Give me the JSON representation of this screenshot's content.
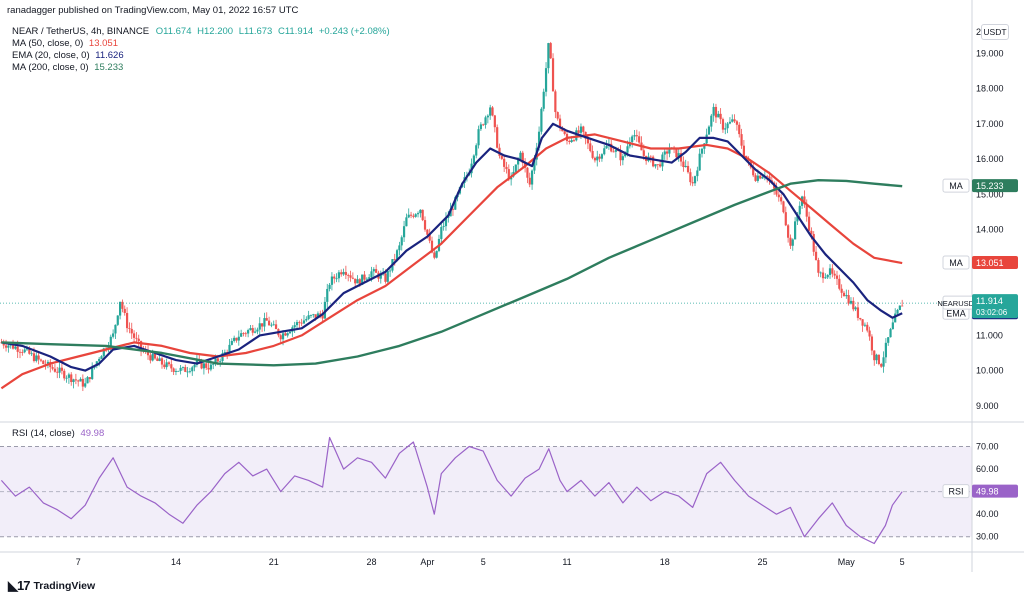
{
  "header": {
    "published": "ranadagger published on TradingView.com, May 01, 2022 16:57 UTC",
    "symbol": "NEAR / TetherUS, 4h, BINANCE",
    "ohlc_o": "O11.674",
    "ohlc_h": "H12.200",
    "ohlc_l": "L11.673",
    "ohlc_c": "C11.914",
    "change": "+0.243 (+2.08%)",
    "ma50_label": "MA (50, close, 0)",
    "ma50_value": "13.051",
    "ema20_label": "EMA (20, close, 0)",
    "ema20_value": "11.626",
    "ma200_label": "MA (200, close, 0)",
    "ma200_value": "15.233",
    "rsi_label": "RSI (14, close)",
    "rsi_value": "49.98"
  },
  "currency_button": "USDT",
  "logo_text": "TradingView",
  "colors": {
    "up": "#26a69a",
    "down": "#ef5350",
    "ma50": "#e8453c",
    "ema20": "#1a237e",
    "ma200": "#2e7d5e",
    "rsi": "#9a63c8",
    "rsi_band": "#ede7f6",
    "price_tag": "#26a69a"
  },
  "chart_data": {
    "type": "line",
    "price_axis": {
      "ticks": [
        "2",
        "19.000",
        "18.000",
        "17.000",
        "16.000",
        "15.000",
        "14.000",
        "13.000",
        "12.000",
        "11.000",
        "10.000",
        "9.000"
      ],
      "ylim": [
        8.6,
        20.0
      ]
    },
    "rsi_axis": {
      "ticks": [
        "70.00",
        "60.00",
        "40.00",
        "30.00"
      ],
      "ylim": [
        25,
        80
      ],
      "band": [
        30,
        70
      ],
      "midline": 50
    },
    "x_ticks": [
      {
        "label": "7",
        "day": 7
      },
      {
        "label": "14",
        "day": 14
      },
      {
        "label": "21",
        "day": 21
      },
      {
        "label": "28",
        "day": 28
      },
      {
        "label": "Apr",
        "day": 32
      },
      {
        "label": "5",
        "day": 36
      },
      {
        "label": "11",
        "day": 42
      },
      {
        "label": "18",
        "day": 49
      },
      {
        "label": "25",
        "day": 56
      },
      {
        "label": "May",
        "day": 62
      },
      {
        "label": "5",
        "day": 66
      }
    ],
    "x_range": [
      1.4,
      71
    ],
    "price_path": [
      [
        1.5,
        10.8
      ],
      [
        3,
        10.6
      ],
      [
        4.5,
        10.2
      ],
      [
        5.5,
        10.0
      ],
      [
        6.5,
        9.8
      ],
      [
        7.5,
        9.6
      ],
      [
        8.5,
        10.4
      ],
      [
        9.5,
        11.0
      ],
      [
        10,
        12.0
      ],
      [
        10.5,
        11.3
      ],
      [
        11.5,
        10.6
      ],
      [
        12.5,
        10.3
      ],
      [
        13.5,
        10.1
      ],
      [
        14.5,
        10.0
      ],
      [
        15.5,
        10.2
      ],
      [
        16.5,
        10.1
      ],
      [
        17.5,
        10.5
      ],
      [
        18.5,
        11.0
      ],
      [
        19.5,
        11.2
      ],
      [
        20.5,
        11.4
      ],
      [
        21.5,
        11.0
      ],
      [
        22.5,
        11.3
      ],
      [
        23.5,
        11.5
      ],
      [
        24.5,
        11.6
      ],
      [
        25,
        12.5
      ],
      [
        26,
        12.9
      ],
      [
        27,
        12.5
      ],
      [
        28,
        12.8
      ],
      [
        29,
        12.6
      ],
      [
        30,
        13.5
      ],
      [
        30.5,
        14.3
      ],
      [
        31.5,
        14.6
      ],
      [
        32.5,
        13.1
      ],
      [
        33,
        14.0
      ],
      [
        34,
        14.8
      ],
      [
        35,
        15.7
      ],
      [
        35.7,
        16.8
      ],
      [
        36.5,
        17.5
      ],
      [
        37.2,
        16.0
      ],
      [
        38,
        15.4
      ],
      [
        38.7,
        16.2
      ],
      [
        39.3,
        15.2
      ],
      [
        40,
        16.8
      ],
      [
        40.7,
        19.3
      ],
      [
        41.2,
        17.2
      ],
      [
        42,
        16.5
      ],
      [
        43,
        16.8
      ],
      [
        44,
        16.0
      ],
      [
        45,
        16.4
      ],
      [
        46,
        16.0
      ],
      [
        46.7,
        16.8
      ],
      [
        47.5,
        16.1
      ],
      [
        48.5,
        15.8
      ],
      [
        49.3,
        16.3
      ],
      [
        50,
        16.1
      ],
      [
        51,
        15.3
      ],
      [
        51.8,
        16.5
      ],
      [
        52.5,
        17.4
      ],
      [
        53.2,
        16.9
      ],
      [
        54,
        17.1
      ],
      [
        54.8,
        16.0
      ],
      [
        55.5,
        15.5
      ],
      [
        56.2,
        15.6
      ],
      [
        57,
        15.0
      ],
      [
        57.5,
        14.6
      ],
      [
        58,
        13.5
      ],
      [
        58.8,
        15.0
      ],
      [
        59.5,
        13.8
      ],
      [
        60,
        12.7
      ],
      [
        60.8,
        12.8
      ],
      [
        61.5,
        12.4
      ],
      [
        62.2,
        12.0
      ],
      [
        62.8,
        11.6
      ],
      [
        63.5,
        11.2
      ],
      [
        64,
        10.4
      ],
      [
        64.5,
        10.2
      ],
      [
        65,
        10.9
      ],
      [
        65.5,
        11.5
      ],
      [
        66,
        11.91
      ]
    ],
    "series": [
      {
        "name": "MA (50, close, 0)",
        "values": [
          [
            1.5,
            9.5
          ],
          [
            3,
            9.9
          ],
          [
            5,
            10.2
          ],
          [
            7,
            10.4
          ],
          [
            9,
            10.6
          ],
          [
            11,
            10.8
          ],
          [
            13,
            10.7
          ],
          [
            15,
            10.5
          ],
          [
            17,
            10.4
          ],
          [
            19,
            10.5
          ],
          [
            21,
            10.7
          ],
          [
            23,
            11.0
          ],
          [
            25,
            11.5
          ],
          [
            27,
            12.0
          ],
          [
            29,
            12.4
          ],
          [
            31,
            13.0
          ],
          [
            33,
            13.6
          ],
          [
            35,
            14.4
          ],
          [
            37,
            15.2
          ],
          [
            39,
            15.8
          ],
          [
            40.5,
            16.3
          ],
          [
            42,
            16.6
          ],
          [
            44,
            16.7
          ],
          [
            46,
            16.5
          ],
          [
            48,
            16.3
          ],
          [
            50,
            16.3
          ],
          [
            52,
            16.4
          ],
          [
            53.5,
            16.3
          ],
          [
            55,
            16.0
          ],
          [
            56.5,
            15.6
          ],
          [
            58,
            15.1
          ],
          [
            59.5,
            14.6
          ],
          [
            61,
            14.1
          ],
          [
            62.5,
            13.6
          ],
          [
            64,
            13.2
          ],
          [
            66,
            13.05
          ]
        ]
      },
      {
        "name": "EMA (20, close, 0)",
        "values": [
          [
            1.5,
            10.8
          ],
          [
            3,
            10.7
          ],
          [
            5,
            10.4
          ],
          [
            6.5,
            10.1
          ],
          [
            7.5,
            10.0
          ],
          [
            8.5,
            10.2
          ],
          [
            9.5,
            10.6
          ],
          [
            11,
            10.7
          ],
          [
            12.5,
            10.5
          ],
          [
            14,
            10.3
          ],
          [
            15.5,
            10.2
          ],
          [
            17,
            10.4
          ],
          [
            18.5,
            10.6
          ],
          [
            20,
            11.0
          ],
          [
            21.5,
            11.1
          ],
          [
            23,
            11.2
          ],
          [
            24.5,
            11.6
          ],
          [
            26,
            12.2
          ],
          [
            27.5,
            12.5
          ],
          [
            29,
            12.8
          ],
          [
            30.5,
            13.4
          ],
          [
            32,
            13.8
          ],
          [
            33.5,
            14.4
          ],
          [
            34.5,
            15.3
          ],
          [
            35.5,
            15.9
          ],
          [
            36.5,
            16.3
          ],
          [
            37.5,
            16.1
          ],
          [
            38.5,
            16.0
          ],
          [
            39.5,
            15.8
          ],
          [
            40.2,
            16.6
          ],
          [
            41,
            17.0
          ],
          [
            42,
            16.8
          ],
          [
            43.5,
            16.6
          ],
          [
            45,
            16.4
          ],
          [
            46.5,
            16.1
          ],
          [
            48,
            16.0
          ],
          [
            49.5,
            15.9
          ],
          [
            50.5,
            16.2
          ],
          [
            51.5,
            16.6
          ],
          [
            52.5,
            16.6
          ],
          [
            53.5,
            16.5
          ],
          [
            54.5,
            16.1
          ],
          [
            55.5,
            15.7
          ],
          [
            56.5,
            15.4
          ],
          [
            57.5,
            15.0
          ],
          [
            58.5,
            14.4
          ],
          [
            59.5,
            13.8
          ],
          [
            60.5,
            13.3
          ],
          [
            61.5,
            12.9
          ],
          [
            62.5,
            12.5
          ],
          [
            63.5,
            12.0
          ],
          [
            64.5,
            11.7
          ],
          [
            65.3,
            11.5
          ],
          [
            66,
            11.63
          ]
        ]
      },
      {
        "name": "MA (200, close, 0)",
        "values": [
          [
            1.5,
            10.8
          ],
          [
            5,
            10.75
          ],
          [
            9,
            10.7
          ],
          [
            13,
            10.5
          ],
          [
            17,
            10.2
          ],
          [
            21,
            10.15
          ],
          [
            24,
            10.2
          ],
          [
            27,
            10.4
          ],
          [
            30,
            10.7
          ],
          [
            33,
            11.1
          ],
          [
            36,
            11.6
          ],
          [
            39,
            12.1
          ],
          [
            42,
            12.6
          ],
          [
            45,
            13.2
          ],
          [
            48,
            13.7
          ],
          [
            51,
            14.2
          ],
          [
            54,
            14.7
          ],
          [
            56,
            15.0
          ],
          [
            58,
            15.3
          ],
          [
            60,
            15.4
          ],
          [
            62,
            15.38
          ],
          [
            64,
            15.3
          ],
          [
            66,
            15.23
          ]
        ]
      },
      {
        "name": "RSI (14, close)",
        "values": [
          [
            1.5,
            55
          ],
          [
            2.5,
            48
          ],
          [
            3.5,
            52
          ],
          [
            4.5,
            45
          ],
          [
            5.5,
            42
          ],
          [
            6.5,
            38
          ],
          [
            7.5,
            44
          ],
          [
            8.5,
            56
          ],
          [
            9.5,
            65
          ],
          [
            10.5,
            52
          ],
          [
            11.5,
            48
          ],
          [
            12.5,
            45
          ],
          [
            13.5,
            40
          ],
          [
            14.5,
            36
          ],
          [
            15.5,
            44
          ],
          [
            16.5,
            50
          ],
          [
            17.5,
            58
          ],
          [
            18.5,
            63
          ],
          [
            19.5,
            57
          ],
          [
            20.5,
            60
          ],
          [
            21.5,
            50
          ],
          [
            22.5,
            57
          ],
          [
            23.5,
            55
          ],
          [
            24.5,
            52
          ],
          [
            25,
            74
          ],
          [
            26,
            60
          ],
          [
            27,
            65
          ],
          [
            28,
            63
          ],
          [
            29,
            56
          ],
          [
            30,
            67
          ],
          [
            31,
            72
          ],
          [
            32,
            52
          ],
          [
            32.5,
            40
          ],
          [
            33,
            58
          ],
          [
            34,
            65
          ],
          [
            35,
            70
          ],
          [
            36,
            68
          ],
          [
            37,
            55
          ],
          [
            38,
            48
          ],
          [
            39,
            56
          ],
          [
            40,
            60
          ],
          [
            40.7,
            69
          ],
          [
            41.5,
            55
          ],
          [
            42,
            50
          ],
          [
            43,
            55
          ],
          [
            44,
            48
          ],
          [
            45,
            54
          ],
          [
            46,
            45
          ],
          [
            47,
            52
          ],
          [
            48,
            46
          ],
          [
            49,
            50
          ],
          [
            50,
            48
          ],
          [
            51,
            43
          ],
          [
            52,
            58
          ],
          [
            53,
            63
          ],
          [
            54,
            55
          ],
          [
            55,
            48
          ],
          [
            56,
            44
          ],
          [
            57,
            40
          ],
          [
            58,
            43
          ],
          [
            59,
            30
          ],
          [
            60,
            38
          ],
          [
            61,
            45
          ],
          [
            62,
            35
          ],
          [
            63,
            30
          ],
          [
            64,
            27
          ],
          [
            64.8,
            35
          ],
          [
            65.3,
            44
          ],
          [
            66,
            49.98
          ]
        ]
      }
    ],
    "last_labels": [
      {
        "name": "MA",
        "value": "15.233"
      },
      {
        "name": "MA",
        "value": "13.051"
      },
      {
        "name": "NEARUSDT",
        "value": "11.914",
        "time": "03:02:06"
      },
      {
        "name": "EMA",
        "value": "11.626"
      },
      {
        "name": "RSI",
        "value": "49.98"
      }
    ]
  }
}
